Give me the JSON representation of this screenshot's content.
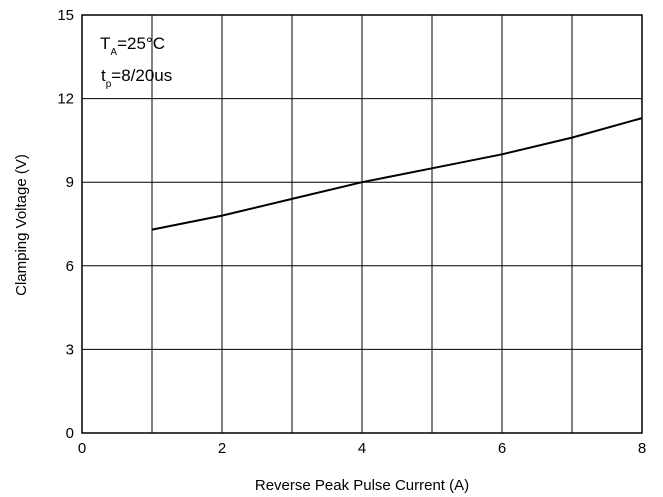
{
  "chart_data": {
    "type": "line",
    "title": "",
    "xlabel": "Reverse Peak Pulse Current (A)",
    "ylabel": "Clamping Voltage (V)",
    "xlim": [
      0,
      8
    ],
    "ylim": [
      0,
      15
    ],
    "xticks": [
      0,
      2,
      4,
      6,
      8
    ],
    "yticks": [
      0,
      3,
      6,
      9,
      12,
      15
    ],
    "grid": true,
    "series": [
      {
        "x": [
          1,
          2,
          3,
          4,
          5,
          6,
          7,
          8
        ],
        "y": [
          7.3,
          7.8,
          8.4,
          9.0,
          9.5,
          10.0,
          10.6,
          11.3
        ],
        "color": "#000000"
      }
    ],
    "annotations": {
      "temp": {
        "main": "T",
        "sub": "A",
        "rest": "=25°C"
      },
      "pulse": {
        "main": "t",
        "sub": "p",
        "rest": "=8/20us"
      }
    }
  }
}
